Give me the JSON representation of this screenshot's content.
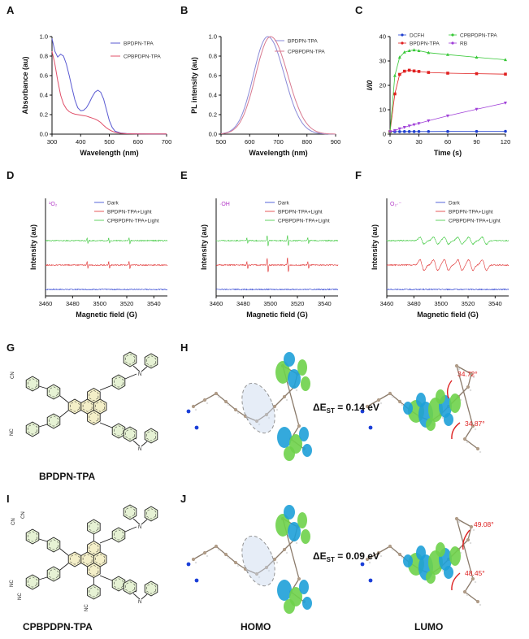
{
  "colors": {
    "blue_line": "#5a5ad2",
    "red_line": "#e0506a",
    "purple_line": "#8a8ad8",
    "pink_line": "#d87a90",
    "esr_blue": "#2b3fd0",
    "esr_red": "#e03030",
    "esr_green": "#3cc83c",
    "dcfh": "#1f3fcf",
    "bpdpn": "#e02020",
    "cpbpdpn": "#38c838",
    "rb": "#a040d8",
    "orbital_green": "#6ed24a",
    "orbital_blue": "#1ea0d8",
    "ring_fill": "#e6f2d4",
    "core_fill": "#f4efc8",
    "angle_red": "#dd2222"
  },
  "icons": [
    "dashed-ellipse-icon",
    "angle-arrow-icon"
  ],
  "chart_data": [
    {
      "panel": "A",
      "type": "line",
      "xlabel": "Wavelength (nm)",
      "ylabel": "Absorbance (au)",
      "xlim": [
        300,
        700
      ],
      "ylim": [
        0,
        1.0
      ],
      "xticks": [
        "300",
        "400",
        "500",
        "600",
        "700"
      ],
      "yticks": [
        "0.0",
        "0.2",
        "0.4",
        "0.6",
        "0.8",
        "1.0"
      ],
      "legend_position": "top-right",
      "series": [
        {
          "name": "BPDPN-TPA",
          "x": [
            300,
            310,
            320,
            330,
            340,
            350,
            360,
            370,
            380,
            390,
            400,
            410,
            420,
            430,
            440,
            450,
            460,
            470,
            480,
            490,
            500,
            510,
            520,
            540,
            560,
            580,
            600,
            650,
            700
          ],
          "y": [
            0.98,
            0.85,
            0.79,
            0.82,
            0.8,
            0.72,
            0.6,
            0.47,
            0.35,
            0.27,
            0.24,
            0.245,
            0.27,
            0.32,
            0.38,
            0.43,
            0.45,
            0.43,
            0.36,
            0.25,
            0.14,
            0.07,
            0.03,
            0.012,
            0.006,
            0.004,
            0.003,
            0.002,
            0.002
          ]
        },
        {
          "name": "CPBPDPN-TPA",
          "x": [
            300,
            310,
            320,
            330,
            340,
            350,
            360,
            370,
            380,
            390,
            400,
            410,
            420,
            430,
            440,
            450,
            460,
            470,
            480,
            490,
            500,
            510,
            520,
            540,
            560,
            580,
            600,
            650,
            700
          ],
          "y": [
            0.85,
            0.72,
            0.55,
            0.4,
            0.31,
            0.26,
            0.23,
            0.215,
            0.205,
            0.2,
            0.195,
            0.19,
            0.185,
            0.175,
            0.165,
            0.155,
            0.14,
            0.12,
            0.09,
            0.065,
            0.045,
            0.03,
            0.018,
            0.008,
            0.004,
            0.003,
            0.002,
            0.002,
            0.002
          ]
        }
      ]
    },
    {
      "panel": "B",
      "type": "line",
      "xlabel": "Wavelength (nm)",
      "ylabel": "PL intensity (au)",
      "xlim": [
        500,
        900
      ],
      "ylim": [
        0,
        1.0
      ],
      "xticks": [
        "500",
        "600",
        "700",
        "800",
        "900"
      ],
      "yticks": [
        "0.0",
        "0.2",
        "0.4",
        "0.6",
        "0.8",
        "1.0"
      ],
      "legend_position": "top-right",
      "series": [
        {
          "name": "BPDPN-TPA",
          "peak": 663,
          "width_left": 50,
          "width_right": 58
        },
        {
          "name": "CPBPDPN-TPA",
          "peak": 673,
          "width_left": 52,
          "width_right": 60
        }
      ]
    },
    {
      "panel": "C",
      "type": "scatter",
      "xlabel": "Time (s)",
      "ylabel": "I/I0",
      "xlim": [
        0,
        120
      ],
      "ylim": [
        0,
        40
      ],
      "xticks": [
        "0",
        "30",
        "60",
        "90",
        "120"
      ],
      "yticks": [
        "0",
        "10",
        "20",
        "30",
        "40"
      ],
      "legend_position": "top",
      "series": [
        {
          "name": "DCFH",
          "marker": "circle",
          "x": [
            0,
            5,
            10,
            15,
            20,
            25,
            30,
            40,
            60,
            90,
            120
          ],
          "y": [
            1.0,
            1.02,
            1.03,
            1.05,
            1.05,
            1.06,
            1.07,
            1.08,
            1.1,
            1.12,
            1.15
          ]
        },
        {
          "name": "BPDPN-TPA",
          "marker": "square",
          "x": [
            0,
            5,
            10,
            15,
            20,
            25,
            30,
            40,
            60,
            90,
            120
          ],
          "y": [
            1,
            16.5,
            24.5,
            25.8,
            26.2,
            25.9,
            25.7,
            25.3,
            25.0,
            24.8,
            24.6
          ]
        },
        {
          "name": "CPBPDPN-TPA",
          "marker": "triangle",
          "x": [
            0,
            5,
            10,
            15,
            20,
            25,
            30,
            40,
            60,
            90,
            120
          ],
          "y": [
            1,
            24,
            31.5,
            33.6,
            34.2,
            34.5,
            34.2,
            33.4,
            32.6,
            31.5,
            30.5
          ]
        },
        {
          "name": "RB",
          "marker": "triangle-down",
          "x": [
            0,
            5,
            10,
            15,
            20,
            25,
            30,
            40,
            60,
            90,
            120
          ],
          "y": [
            1,
            1.5,
            2.2,
            2.8,
            3.4,
            3.9,
            4.4,
            5.5,
            7.5,
            10.2,
            12.8
          ]
        }
      ]
    },
    {
      "panel": "D",
      "type": "line",
      "species": "¹O₂",
      "xlabel": "Magnetic field (G)",
      "ylabel": "Intensity (au)",
      "xlim": [
        3460,
        3550
      ],
      "xticks": [
        "3460",
        "3480",
        "3500",
        "3520",
        "3540"
      ],
      "legend_position": "top-right",
      "series": [
        {
          "name": "Dark",
          "lines": []
        },
        {
          "name": "BPDPN-TPA+Light",
          "lines": [
            3491,
            3507,
            3522
          ],
          "amp": 0.55
        },
        {
          "name": "CPBPDPN-TPA+Light",
          "lines": [
            3491,
            3507,
            3522
          ],
          "amp": 0.45
        }
      ]
    },
    {
      "panel": "E",
      "type": "line",
      "species": "·OH",
      "xlabel": "Magnetic field (G)",
      "ylabel": "Intensity (au)",
      "xlim": [
        3460,
        3550
      ],
      "xticks": [
        "3460",
        "3480",
        "3500",
        "3520",
        "3540"
      ],
      "legend_position": "top-right",
      "series": [
        {
          "name": "Dark",
          "lines": []
        },
        {
          "name": "BPDPN-TPA+Light",
          "lines": [
            3483,
            3498,
            3513,
            3528
          ],
          "weights": [
            1,
            2,
            2,
            1
          ],
          "amp": 0.6
        },
        {
          "name": "CPBPDPN-TPA+Light",
          "lines": [
            3483,
            3498,
            3513,
            3528
          ],
          "weights": [
            1,
            2,
            2,
            1
          ],
          "amp": 0.45
        }
      ]
    },
    {
      "panel": "F",
      "type": "line",
      "species": "O₂·⁻",
      "xlabel": "Magnetic field (G)",
      "ylabel": "Intensity (au)",
      "xlim": [
        3460,
        3550
      ],
      "xticks": [
        "3460",
        "3480",
        "3500",
        "3520",
        "3540"
      ],
      "legend_position": "top-right",
      "series": [
        {
          "name": "Dark",
          "lines": []
        },
        {
          "name": "BPDPN-TPA+Light",
          "lines": [
            3486,
            3496,
            3504,
            3514,
            3522,
            3532
          ],
          "amp": 0.85
        },
        {
          "name": "CPBPDPN-TPA+Light",
          "lines": [
            3486,
            3496,
            3504,
            3514,
            3522,
            3532
          ],
          "amp": 0.55
        }
      ]
    }
  ],
  "panels": {
    "A": "A",
    "B": "B",
    "C": "C",
    "D": "D",
    "E": "E",
    "F": "F",
    "G": "G",
    "H": "H",
    "I": "I",
    "J": "J"
  },
  "molecules": {
    "g_name": "BPDPN-TPA",
    "i_name": "CPBPDPN-TPA",
    "cn": "CN",
    "nc": "NC",
    "n": "N"
  },
  "orbitals": {
    "homo": "HOMO",
    "lumo": "LUMO",
    "delta_h_prefix": "ΔE",
    "delta_h_sub": "ST",
    "delta_h_value": " = 0.14 eV",
    "delta_j_prefix": "ΔE",
    "delta_j_sub": "ST",
    "delta_j_value": " = 0.09 eV",
    "h_angle_1": "34.72°",
    "h_angle_2": "34.87°",
    "j_angle_1": "49.08°",
    "j_angle_2": "48.45°"
  }
}
